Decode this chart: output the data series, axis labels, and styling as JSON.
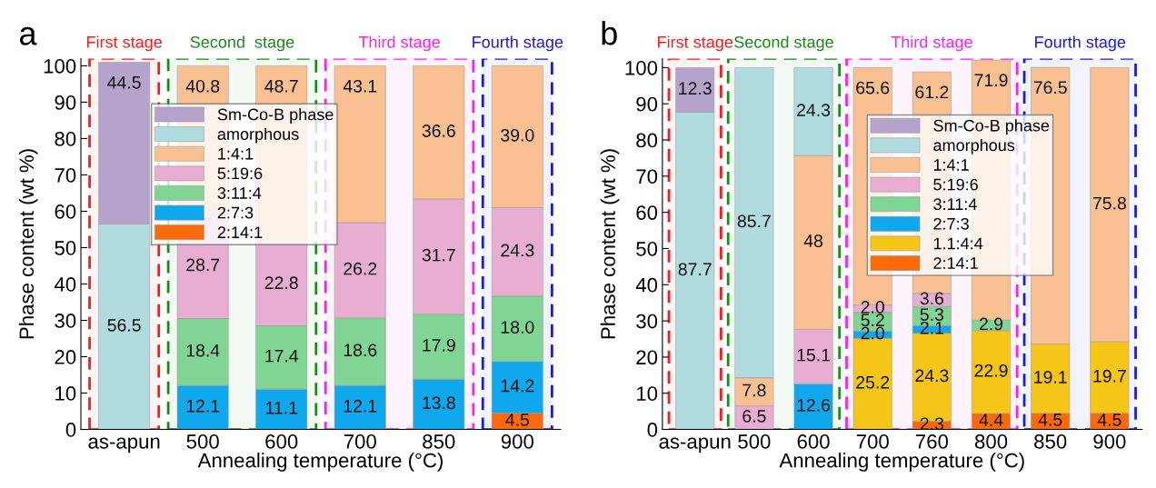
{
  "chart_data": [
    {
      "type": "bar",
      "stacked": true,
      "xlabel": "Annealing temperature (°C)",
      "ylabel": "Phase content (wt %)",
      "annotations": [
        "a"
      ],
      "categories": [
        "as-apun",
        "500",
        "600",
        "700",
        "850",
        "900"
      ],
      "ylim": [
        0,
        102
      ],
      "yticks": [
        0,
        10,
        20,
        30,
        40,
        50,
        60,
        70,
        80,
        90,
        100
      ],
      "legend": "top",
      "grid": false,
      "series": [
        {
          "name": "2:14:1",
          "color": "#fa6a0a",
          "values": [
            null,
            null,
            null,
            null,
            null,
            4.5
          ],
          "value_labels": [
            null,
            null,
            null,
            null,
            null,
            "4.5"
          ]
        },
        {
          "name": "2:7:3",
          "color": "#10a8ec",
          "values": [
            null,
            12.1,
            11.1,
            12.1,
            13.8,
            14.2
          ],
          "value_labels": [
            null,
            "12.1",
            "11.1",
            "12.1",
            "13.8",
            "14.2"
          ]
        },
        {
          "name": "3:11:4",
          "color": "#80d494",
          "values": [
            null,
            18.4,
            17.4,
            18.6,
            17.9,
            18.0
          ],
          "value_labels": [
            null,
            "18.4",
            "17.4",
            "18.6",
            "17.9",
            "18.0"
          ]
        },
        {
          "name": "5:19:6",
          "color": "#e8aed2",
          "values": [
            null,
            28.7,
            22.8,
            26.2,
            31.7,
            24.3
          ],
          "value_labels": [
            null,
            "28.7",
            "22.8",
            "26.2",
            "31.7",
            "24.3"
          ]
        },
        {
          "name": "1:4:1",
          "color": "#f9c192",
          "values": [
            null,
            40.8,
            48.7,
            43.1,
            36.6,
            39.0
          ],
          "value_labels": [
            null,
            "40.8",
            "48.7",
            "43.1",
            "36.6",
            "39.0"
          ]
        },
        {
          "name": "amorphous",
          "color": "#b0dce0",
          "values": [
            56.5,
            null,
            null,
            null,
            null,
            null
          ],
          "value_labels": [
            "56.5",
            null,
            null,
            null,
            null,
            null
          ]
        },
        {
          "name": "Sm-Co-B phase",
          "color": "#b5a3cc",
          "values": [
            44.5,
            null,
            null,
            null,
            null,
            null
          ],
          "value_labels": [
            "44.5",
            null,
            null,
            null,
            null,
            null
          ]
        }
      ],
      "bands": [
        {
          "axis": "x",
          "from": "as-apun",
          "to": "as-apun",
          "label": "First stage",
          "color": "#ff1a1a"
        },
        {
          "axis": "x",
          "from": "500",
          "to": "600",
          "label": "Second  stage",
          "color": "#1a8a1a"
        },
        {
          "axis": "x",
          "from": "700",
          "to": "850",
          "label": "Third stage",
          "color": "#ff1aff"
        },
        {
          "axis": "x",
          "from": "900",
          "to": "900",
          "label": "Fourth stage",
          "color": "#1a1ae6"
        }
      ]
    },
    {
      "type": "bar",
      "stacked": true,
      "xlabel": "Annealing temperature (°C)",
      "ylabel": "Phase content (wt %)",
      "annotations": [
        "b"
      ],
      "categories": [
        "as-apun",
        "500",
        "600",
        "700",
        "760",
        "800",
        "850",
        "900"
      ],
      "ylim": [
        0,
        102.5
      ],
      "yticks": [
        0,
        10,
        20,
        30,
        40,
        50,
        60,
        70,
        80,
        90,
        100
      ],
      "legend": "top right",
      "grid": false,
      "series": [
        {
          "name": "2:14:1",
          "color": "#fa6a0a",
          "values": [
            null,
            null,
            null,
            null,
            2.3,
            4.4,
            4.5,
            4.5
          ],
          "value_labels": [
            null,
            null,
            null,
            null,
            "2.3",
            "4.4",
            "4.5",
            "4.5"
          ]
        },
        {
          "name": "1.1:4:4",
          "color": "#f5c518",
          "values": [
            null,
            null,
            null,
            25.2,
            24.3,
            22.9,
            19.1,
            19.7
          ],
          "value_labels": [
            null,
            null,
            null,
            "25.2",
            "24.3",
            "22.9",
            "19.1",
            "19.7"
          ]
        },
        {
          "name": "2:7:3",
          "color": "#10a8ec",
          "values": [
            null,
            null,
            12.6,
            2.0,
            2.1,
            null,
            null,
            null
          ],
          "value_labels": [
            null,
            null,
            "12.6",
            "2.0",
            "2.1",
            null,
            null,
            null
          ]
        },
        {
          "name": "3:11:4",
          "color": "#80d494",
          "values": [
            null,
            null,
            null,
            5.2,
            5.3,
            2.9,
            null,
            null
          ],
          "value_labels": [
            null,
            null,
            null,
            "5.2",
            "5.3",
            "2.9",
            null,
            null
          ]
        },
        {
          "name": "5:19:6",
          "color": "#e8aed2",
          "values": [
            null,
            6.5,
            15.1,
            2.0,
            3.6,
            null,
            null,
            null
          ],
          "value_labels": [
            null,
            "6.5",
            "15.1",
            "2.0",
            "3.6",
            null,
            null,
            null
          ]
        },
        {
          "name": "1:4:1",
          "color": "#f9c192",
          "values": [
            null,
            7.8,
            48,
            65.6,
            61.2,
            71.9,
            76.5,
            75.8
          ],
          "value_labels": [
            null,
            "7.8",
            "48",
            "65.6",
            "61.2",
            "71.9",
            "76.5",
            "75.8"
          ]
        },
        {
          "name": "amorphous",
          "color": "#b0dce0",
          "values": [
            87.7,
            85.7,
            24.3,
            null,
            null,
            null,
            null,
            null
          ],
          "value_labels": [
            "87.7",
            "85.7",
            "24.3",
            null,
            null,
            null,
            null,
            null
          ]
        },
        {
          "name": "Sm-Co-B phase",
          "color": "#b5a3cc",
          "values": [
            12.3,
            null,
            null,
            null,
            null,
            null,
            null,
            null
          ],
          "value_labels": [
            "12.3",
            null,
            null,
            null,
            null,
            null,
            null,
            null
          ]
        }
      ],
      "bands": [
        {
          "axis": "x",
          "from": "as-apun",
          "to": "as-apun",
          "label": "First stage",
          "color": "#ff1a1a"
        },
        {
          "axis": "x",
          "from": "500",
          "to": "600",
          "label": "Second stage",
          "color": "#1a8a1a"
        },
        {
          "axis": "x",
          "from": "700",
          "to": "800",
          "label": "Third stage",
          "color": "#ff1aff"
        },
        {
          "axis": "x",
          "from": "850",
          "to": "900",
          "label": "Fourth stage",
          "color": "#1a1ae6"
        }
      ]
    }
  ]
}
